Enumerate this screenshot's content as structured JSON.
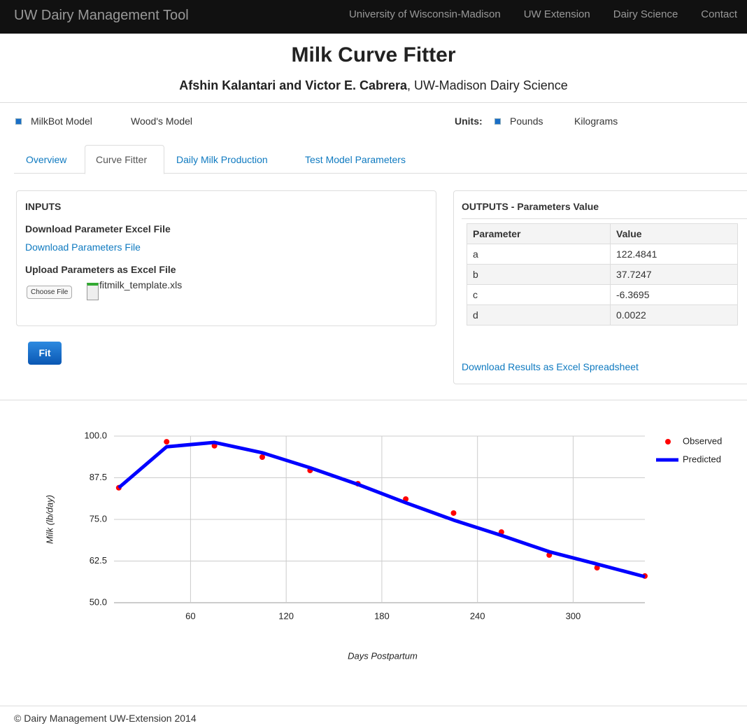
{
  "navbar": {
    "brand": "UW Dairy Management Tool",
    "links": [
      "University of Wisconsin-Madison",
      "UW Extension",
      "Dairy Science",
      "Contact"
    ]
  },
  "header": {
    "title": "Milk Curve Fitter",
    "authors": "Afshin Kalantari and Victor E. Cabrera",
    "affiliation": ", UW-Madison Dairy Science"
  },
  "options": {
    "models": [
      "MilkBot Model",
      "Wood's Model"
    ],
    "units_label": "Units:",
    "units": [
      "Pounds",
      "Kilograms"
    ]
  },
  "tabs": [
    "Overview",
    "Curve Fitter",
    "Daily Milk Production",
    "Test Model Parameters"
  ],
  "inputs": {
    "heading": "INPUTS",
    "download_heading": "Download Parameter Excel File",
    "download_link": "Download Parameters File",
    "upload_heading": "Upload Parameters as Excel File",
    "choose_button": "Choose File",
    "file_name": "fitmilk_template.xls"
  },
  "fit_button": "Fit",
  "outputs": {
    "heading": "OUTPUTS - Parameters Value",
    "table": {
      "columns": [
        "Parameter",
        "Value"
      ],
      "rows": [
        [
          "a",
          "122.4841"
        ],
        [
          "b",
          "37.7247"
        ],
        [
          "c",
          "-6.3695"
        ],
        [
          "d",
          "0.0022"
        ]
      ]
    },
    "download_link": "Download Results as Excel Spreadsheet"
  },
  "chart_data": {
    "type": "line",
    "x_label": "Days Postpartum",
    "y_label": "Milk (lb/day)",
    "x": [
      15,
      45,
      75,
      105,
      135,
      165,
      195,
      225,
      255,
      285,
      315,
      345
    ],
    "series": [
      {
        "name": "Observed",
        "color": "#ff0000",
        "marker": "point",
        "values": [
          84.5,
          98.3,
          97.1,
          93.7,
          89.7,
          85.7,
          81.1,
          76.9,
          71.2,
          64.3,
          60.5,
          58.0
        ]
      },
      {
        "name": "Predicted",
        "color": "#0000ff",
        "marker": "line",
        "values": [
          84.5,
          96.8,
          98.1,
          95.0,
          90.5,
          85.5,
          80.0,
          74.8,
          70.2,
          65.3,
          61.6,
          57.8
        ]
      }
    ],
    "xlim": [
      12,
      345
    ],
    "ylim": [
      50,
      100
    ],
    "xticks": [
      60,
      120,
      180,
      240,
      300
    ],
    "yticks": [
      {
        "value": 50,
        "label": "50.0"
      },
      {
        "value": 62.5,
        "label": "62.5"
      },
      {
        "value": 75,
        "label": "75.0"
      },
      {
        "value": 87.5,
        "label": "87.5"
      },
      {
        "value": 100,
        "label": "100.0"
      }
    ],
    "grid": true,
    "legend": "right"
  },
  "footer": "© Dairy Management UW-Extension 2014"
}
